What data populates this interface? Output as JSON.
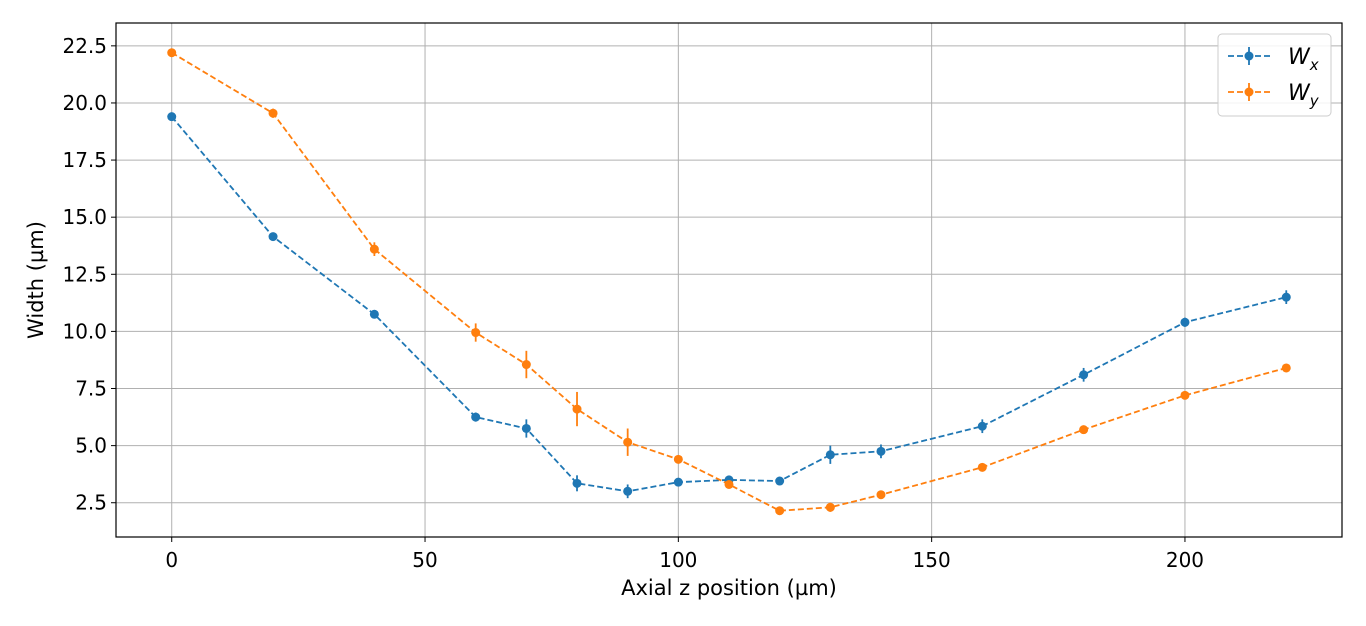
{
  "chart_data": {
    "type": "line",
    "xlabel": "Axial z position (µm)",
    "ylabel": "Width (µm)",
    "xlim": [
      -11,
      231
    ],
    "ylim": [
      1.0,
      23.5
    ],
    "xticks": [
      0,
      50,
      100,
      150,
      200
    ],
    "yticks": [
      2.5,
      5.0,
      7.5,
      10.0,
      12.5,
      15.0,
      17.5,
      20.0,
      22.5
    ],
    "xtick_labels": [
      "0",
      "50",
      "100",
      "150",
      "200"
    ],
    "ytick_labels": [
      "2.5",
      "5.0",
      "7.5",
      "10.0",
      "12.5",
      "15.0",
      "17.5",
      "20.0",
      "22.5"
    ],
    "grid": true,
    "legend_position": "top-right",
    "x": [
      0,
      20,
      40,
      60,
      70,
      80,
      90,
      100,
      110,
      120,
      130,
      140,
      160,
      180,
      200,
      220
    ],
    "series": [
      {
        "name": "W",
        "subscript": "x",
        "color": "#1f77b4",
        "values": [
          19.4,
          14.15,
          10.75,
          6.25,
          5.75,
          3.35,
          3.0,
          3.4,
          3.5,
          3.45,
          4.6,
          4.75,
          5.85,
          8.1,
          10.4,
          11.5
        ],
        "errors": [
          0.1,
          0.15,
          0.1,
          0.2,
          0.4,
          0.35,
          0.3,
          0.1,
          0.1,
          0.15,
          0.4,
          0.3,
          0.3,
          0.3,
          0.2,
          0.3
        ]
      },
      {
        "name": "W",
        "subscript": "y",
        "color": "#ff7f0e",
        "values": [
          22.2,
          19.55,
          13.6,
          9.95,
          8.55,
          6.6,
          5.15,
          4.4,
          3.3,
          2.15,
          2.3,
          2.85,
          4.05,
          5.7,
          7.2,
          8.4
        ],
        "errors": [
          0.15,
          0.2,
          0.3,
          0.4,
          0.6,
          0.75,
          0.6,
          0.15,
          0.1,
          0.1,
          0.2,
          0.1,
          0.15,
          0.1,
          0.1,
          0.15
        ]
      }
    ]
  }
}
